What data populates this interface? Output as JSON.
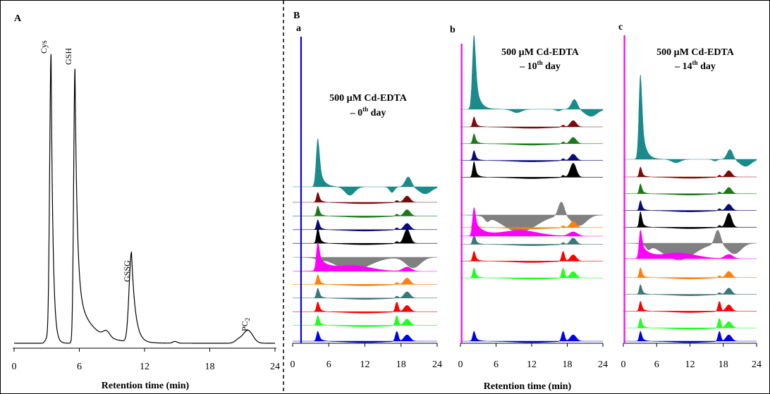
{
  "panel_labels": {
    "A": "A",
    "B": "B",
    "a": "a",
    "b": "b",
    "c": "c"
  },
  "xlabel_A": "Retention time (min)",
  "xlabel_B": "Retention time (min)",
  "subtitles": {
    "a": {
      "line1": "500 µM Cd-EDTA",
      "line2_pre": "– 0",
      "line2_sup": "th",
      "line2_post": " day"
    },
    "b": {
      "line1": "500 µM Cd-EDTA",
      "line2_pre": "– 10",
      "line2_sup": "th",
      "line2_post": " day"
    },
    "c": {
      "line1": "500 µM Cd-EDTA",
      "line2_pre": "– 14",
      "line2_sup": "th",
      "line2_post": " day"
    }
  },
  "colors": {
    "teal": "#1a8a8a",
    "darkred": "#7a0a0a",
    "green": "#1a7a1a",
    "navy": "#0a0a7a",
    "black": "#000000",
    "gray": "#808080",
    "magenta": "#ff00ff",
    "orange": "#ff7f0f",
    "slate": "#3a7878",
    "red": "#ff0000",
    "lime": "#22ff22",
    "blue": "#0000ee"
  },
  "chart_data": [
    {
      "type": "line",
      "title": "",
      "xlabel": "Retention time (min)",
      "ylabel": "",
      "xlim": [
        0,
        24
      ],
      "xticks": [
        0,
        6,
        12,
        18,
        24
      ],
      "peaks": [
        {
          "label": "Cys",
          "x": 3.4
        },
        {
          "label": "GSH",
          "x": 5.6
        },
        {
          "label": "GSSG",
          "x": 10.8
        },
        {
          "label": "PC",
          "label_sub": "2",
          "x": 21.5
        }
      ]
    },
    {
      "type": "area",
      "title": "",
      "xlabel": "",
      "xlim": [
        0,
        24
      ],
      "xticks": [
        0,
        6,
        12,
        18,
        24
      ],
      "subplots": [
        "a",
        "b",
        "c"
      ]
    }
  ]
}
